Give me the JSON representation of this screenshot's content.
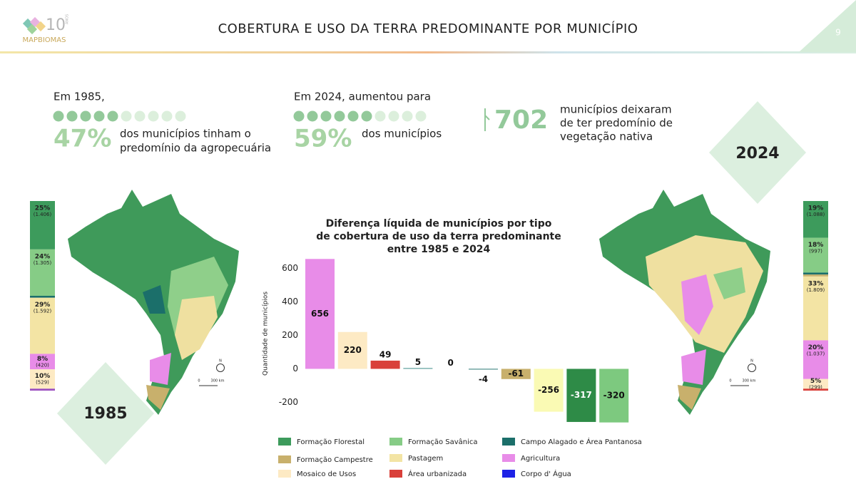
{
  "header": {
    "logo": "MAPBIOMAS",
    "logo_years": "10",
    "logo_sub": "ANOS",
    "title": "COBERTURA E USO DA TERRA PREDOMINANTE POR MUNICÍPIO",
    "page": "9"
  },
  "stats": [
    {
      "intro": "Em 1985,",
      "value": 47,
      "label": "47%",
      "text": [
        "dos municípios tinham o",
        "predomínio da agropecuária"
      ]
    },
    {
      "intro": "Em 2024, aumentou para",
      "value": 59,
      "label": "59%",
      "text": [
        "dos municípios"
      ]
    }
  ],
  "highlight": {
    "value": 702,
    "text": [
      "municípios deixaram",
      "de ter predomínio de",
      "vegetação nativa"
    ]
  },
  "years": [
    "1985",
    "2024"
  ],
  "map_labels": {
    "north": "N",
    "scale_start": "0",
    "scale_end": "300 km"
  },
  "composition": [
    {
      "segments": [
        {
          "value": 25,
          "label": "25%",
          "count": "(1.406)",
          "color": "#3d9b5c"
        },
        {
          "value": 24,
          "label": "24%",
          "count": "(1.305)",
          "color": "#86cc86"
        },
        {
          "value": 1,
          "color": "#1b6f6a"
        },
        {
          "value": 29,
          "label": "29%",
          "count": "(1.592)",
          "color": "#f3e4a4"
        },
        {
          "value": 8,
          "label": "8%",
          "count": "(420)",
          "color": "#e88ce8"
        },
        {
          "value": 10,
          "label": "10%",
          "count": "(529)",
          "color": "#fdeac4"
        },
        {
          "value": 1,
          "color": "#9b4fc0"
        }
      ]
    },
    {
      "segments": [
        {
          "value": 19,
          "label": "19%",
          "count": "(1.088)",
          "color": "#3d9b5c"
        },
        {
          "value": 18,
          "label": "18%",
          "count": "(997)",
          "color": "#86cc86"
        },
        {
          "value": 1,
          "color": "#1b6f6a"
        },
        {
          "value": 1,
          "color": "#c8b06c"
        },
        {
          "value": 33,
          "label": "33%",
          "count": "(1.809)",
          "color": "#f3e4a4"
        },
        {
          "value": 20,
          "label": "20%",
          "count": "(1.037)",
          "color": "#e88ce8"
        },
        {
          "value": 5,
          "label": "5%",
          "count": "(299)",
          "color": "#fdeac4"
        },
        {
          "value": 1,
          "color": "#d9403a"
        }
      ]
    }
  ],
  "chart_data": {
    "type": "bar",
    "title": [
      "Diferença líquida de municípios por tipo",
      "de cobertura de uso da terra predominante",
      "entre 1985 e 2024"
    ],
    "y_label": "Quantidade de municípios",
    "values": [
      656,
      220,
      49,
      5,
      0,
      -4,
      -61,
      -256,
      -317,
      -320
    ],
    "colors": [
      "#e88ce8",
      "#fdeac4",
      "#d9403a",
      "#5a9e9a",
      "#1e22e6",
      "#1b6f6a",
      "#c8b06c",
      "#fafab4",
      "#2e8b47",
      "#7dc97f"
    ],
    "ylim": [
      -330,
      670
    ],
    "yticks": [
      -200,
      0,
      200,
      400,
      600
    ],
    "grid": false
  },
  "legend": [
    {
      "name": "Formação Florestal",
      "color": "#3d9b5c"
    },
    {
      "name": "Formação Campestre",
      "color": "#c8b06c"
    },
    {
      "name": "Mosaico de Usos",
      "color": "#fdeac4"
    },
    {
      "name": "Formação Savânica",
      "color": "#86cc86"
    },
    {
      "name": "Pastagem",
      "color": "#f3e4a4"
    },
    {
      "name": "Área urbanizada",
      "color": "#d9403a"
    },
    {
      "name": "Campo Alagado e Área Pantanosa",
      "color": "#1b6f6a"
    },
    {
      "name": "Agricultura",
      "color": "#e88ce8"
    },
    {
      "name": "Corpo d' Água",
      "color": "#1e22e6"
    }
  ]
}
